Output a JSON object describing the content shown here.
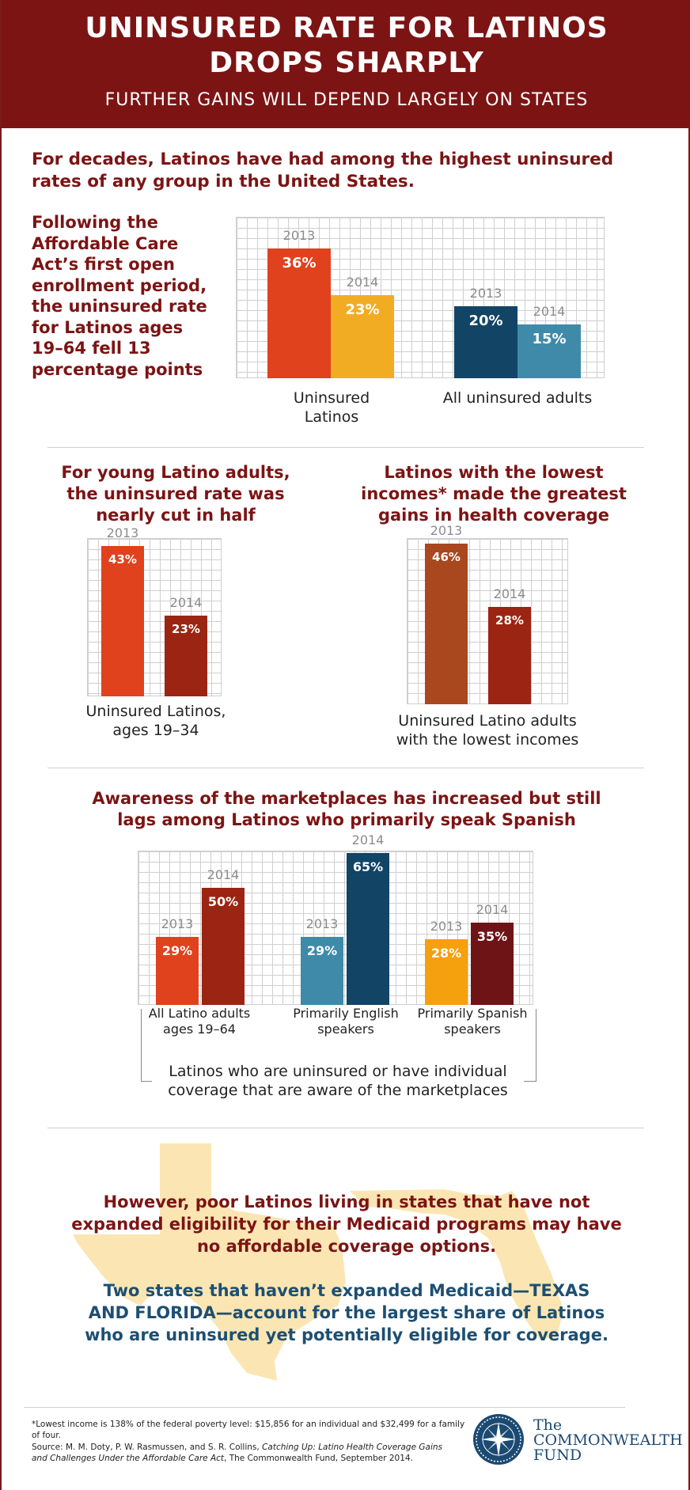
{
  "header": {
    "title": "UNINSURED RATE FOR LATINOS DROPS SHARPLY",
    "subtitle": "FURTHER GAINS WILL DEPEND LARGELY ON STATES"
  },
  "intro": "For decades, Latinos have had among the highest uninsured rates of any group in the United States.",
  "sidenote": "Following the Affordable Care Act’s first open enrollment period, the uninsured rate for Latinos ages 19–64 fell 13 percentage points",
  "colors": {
    "header_bg": "#7c1414",
    "orange_red": "#e0421e",
    "gold": "#f2ac23",
    "dark_blue": "#124466",
    "teal": "#3f8aa8",
    "dark_red": "#9b2512",
    "brown_orange": "#a9471f",
    "orange": "#f5a00d",
    "maroon": "#6e1416",
    "navy_text": "#1d4f72",
    "texas_tan": "#fbe6b3"
  },
  "section2": {
    "left_heading": "For young Latino adults, the uninsured rate was nearly cut in half",
    "right_heading": "Latinos with the lowest incomes* made the greatest gains in health coverage"
  },
  "section3": {
    "heading": "Awareness of the marketplaces has increased but still lags among Latinos who primarily speak Spanish",
    "bracket_label": "Latinos who are uninsured or have individual coverage that are aware of the marketplaces"
  },
  "chart_data": [
    {
      "type": "bar",
      "categories": [
        "Uninsured Latinos",
        "All uninsured adults"
      ],
      "series": [
        {
          "name": "2013",
          "values": [
            36,
            20
          ]
        },
        {
          "name": "2014",
          "values": [
            23,
            15
          ]
        }
      ],
      "value_suffix": "%",
      "ylim": [
        0,
        45
      ]
    },
    {
      "type": "bar",
      "categories": [
        "Uninsured Latinos, ages 19–34"
      ],
      "series": [
        {
          "name": "2013",
          "values": [
            43
          ]
        },
        {
          "name": "2014",
          "values": [
            23
          ]
        }
      ],
      "value_suffix": "%",
      "ylim": [
        0,
        50
      ]
    },
    {
      "type": "bar",
      "categories": [
        "Uninsured Latino adults with the lowest incomes"
      ],
      "series": [
        {
          "name": "2013",
          "values": [
            46
          ]
        },
        {
          "name": "2014",
          "values": [
            28
          ]
        }
      ],
      "value_suffix": "%",
      "ylim": [
        0,
        50
      ]
    },
    {
      "type": "bar",
      "categories": [
        "All Latino adults ages 19–64",
        "Primarily English speakers",
        "Primarily Spanish speakers"
      ],
      "series": [
        {
          "name": "2013",
          "values": [
            29,
            29,
            28
          ]
        },
        {
          "name": "2014",
          "values": [
            50,
            65,
            35
          ]
        }
      ],
      "value_suffix": "%",
      "ylim": [
        0,
        70
      ]
    }
  ],
  "closing": {
    "para1": "However, poor Latinos living in states that have not expanded eligibility for their Medicaid programs may have no affordable coverage options.",
    "para2": "Two states that haven’t expanded Medicaid—TEXAS AND FLORIDA—account for the largest share of Latinos who are uninsured yet potentially eligible for coverage."
  },
  "footer": {
    "footnote": "*Lowest income is 138% of the federal poverty level: $15,856 for an individual and $32,499 for a family of four.",
    "source_prefix": "Source:  M. M. Doty, P. W. Rasmussen, and S. R. Collins, ",
    "source_title": "Catching Up: Latino Health Coverage Gains and Challenges Under the Affordable Care Act",
    "source_suffix": ", The Commonwealth Fund, September 2014.",
    "logo_line1": "The",
    "logo_line2": "COMMONWEALTH",
    "logo_line3": "FUND"
  }
}
